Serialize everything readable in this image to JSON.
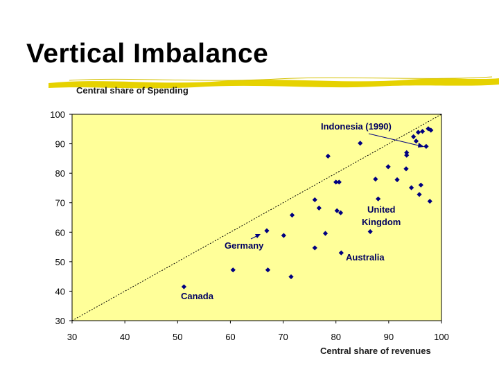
{
  "slide": {
    "title": "Vertical Imbalance"
  },
  "colors": {
    "plot_background": "#ffff99",
    "marker": "#000080",
    "title_bar": "#e6d200"
  },
  "chart_data": {
    "type": "scatter",
    "title": "",
    "xlabel": "Central share of revenues",
    "ylabel": "Central share of Spending",
    "xlim": [
      30,
      100
    ],
    "ylim": [
      30,
      100
    ],
    "x_ticks": [
      "30",
      "40",
      "50",
      "60",
      "70",
      "80",
      "90",
      "100"
    ],
    "y_ticks": [
      "30",
      "40",
      "50",
      "60",
      "70",
      "80",
      "90",
      "100"
    ],
    "grid": false,
    "reference_line": "45-degree dotted line (y = x)",
    "points": [
      {
        "x": 51.2,
        "y": 41.5
      },
      {
        "x": 60.5,
        "y": 47.2
      },
      {
        "x": 67.1,
        "y": 47.2
      },
      {
        "x": 71.5,
        "y": 44.9
      },
      {
        "x": 66.9,
        "y": 60.5
      },
      {
        "x": 70.1,
        "y": 58.9
      },
      {
        "x": 71.7,
        "y": 65.8
      },
      {
        "x": 76.0,
        "y": 54.7
      },
      {
        "x": 76.0,
        "y": 71.0
      },
      {
        "x": 76.8,
        "y": 68.2
      },
      {
        "x": 78.0,
        "y": 59.6
      },
      {
        "x": 78.5,
        "y": 85.8
      },
      {
        "x": 80.0,
        "y": 77.0
      },
      {
        "x": 80.2,
        "y": 67.3
      },
      {
        "x": 80.6,
        "y": 77.0
      },
      {
        "x": 80.9,
        "y": 66.6
      },
      {
        "x": 81.0,
        "y": 53.0
      },
      {
        "x": 84.6,
        "y": 90.2
      },
      {
        "x": 86.5,
        "y": 60.2
      },
      {
        "x": 87.5,
        "y": 78.0
      },
      {
        "x": 88.0,
        "y": 71.3
      },
      {
        "x": 89.9,
        "y": 82.2
      },
      {
        "x": 91.6,
        "y": 77.8
      },
      {
        "x": 93.3,
        "y": 81.5
      },
      {
        "x": 93.4,
        "y": 86.1
      },
      {
        "x": 93.4,
        "y": 87.0
      },
      {
        "x": 94.3,
        "y": 75.1
      },
      {
        "x": 94.7,
        "y": 92.4
      },
      {
        "x": 95.2,
        "y": 90.9
      },
      {
        "x": 95.6,
        "y": 93.9
      },
      {
        "x": 95.8,
        "y": 72.8
      },
      {
        "x": 96.1,
        "y": 76.0
      },
      {
        "x": 96.4,
        "y": 94.2
      },
      {
        "x": 97.1,
        "y": 89.1
      },
      {
        "x": 97.5,
        "y": 95.1
      },
      {
        "x": 97.8,
        "y": 70.5
      },
      {
        "x": 98.0,
        "y": 94.6
      }
    ],
    "annotations": [
      {
        "text": "Indonesia (1990)"
      },
      {
        "text": "United"
      },
      {
        "text": "Kingdom"
      },
      {
        "text": "Germany"
      },
      {
        "text": "Australia"
      },
      {
        "text": "Canada"
      }
    ]
  }
}
